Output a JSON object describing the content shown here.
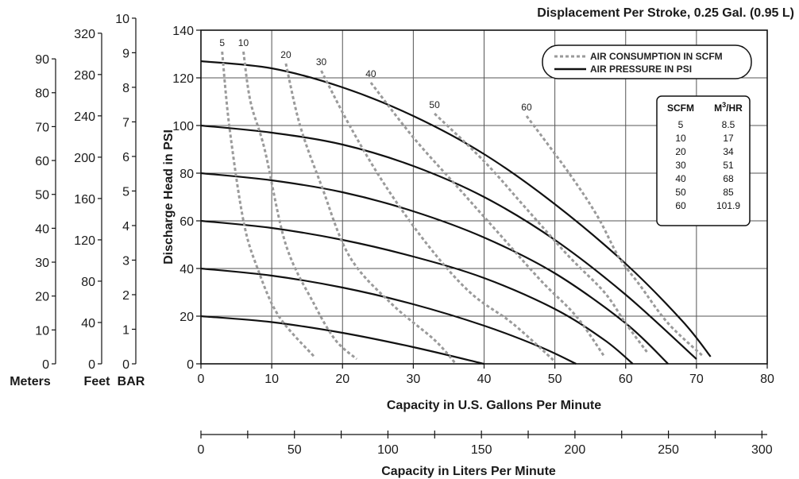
{
  "chart_data": {
    "type": "line",
    "title": "Displacement Per Stroke, 0.25 Gal. (0.95 L)",
    "xlabel": "Capacity in U.S. Gallons Per Minute",
    "ylabel": "Discharge Head in PSI",
    "xlim": [
      0,
      80
    ],
    "ylim": [
      0,
      140
    ],
    "x_ticks": [
      "0",
      "10",
      "20",
      "30",
      "40",
      "50",
      "60",
      "70",
      "80"
    ],
    "y_ticks": [
      "0",
      "20",
      "40",
      "60",
      "80",
      "100",
      "120",
      "140"
    ],
    "grid": true,
    "legend": {
      "position": "top-right",
      "items": [
        {
          "label": "AIR CONSUMPTION IN SCFM",
          "style": "dashed",
          "color": "#9a9a9a"
        },
        {
          "label": "AIR PRESSURE IN PSI",
          "style": "solid",
          "color": "#111111"
        }
      ]
    },
    "pressure_curves": [
      {
        "name": "20",
        "points": [
          [
            0,
            20
          ],
          [
            10,
            17.5
          ],
          [
            20,
            13
          ],
          [
            30,
            7
          ],
          [
            40,
            0
          ]
        ]
      },
      {
        "name": "40",
        "points": [
          [
            0,
            40
          ],
          [
            10,
            37
          ],
          [
            20,
            32
          ],
          [
            30,
            25
          ],
          [
            40,
            16
          ],
          [
            48,
            7
          ],
          [
            53,
            0
          ]
        ]
      },
      {
        "name": "60",
        "points": [
          [
            0,
            60
          ],
          [
            10,
            57
          ],
          [
            20,
            52
          ],
          [
            30,
            45
          ],
          [
            40,
            36
          ],
          [
            50,
            23
          ],
          [
            57,
            10
          ],
          [
            61,
            0
          ]
        ]
      },
      {
        "name": "80",
        "points": [
          [
            0,
            80
          ],
          [
            10,
            77
          ],
          [
            20,
            72
          ],
          [
            30,
            64
          ],
          [
            40,
            53
          ],
          [
            50,
            38
          ],
          [
            60,
            17
          ],
          [
            66,
            0
          ]
        ]
      },
      {
        "name": "100",
        "points": [
          [
            0,
            100
          ],
          [
            10,
            97
          ],
          [
            20,
            92
          ],
          [
            30,
            83
          ],
          [
            40,
            70
          ],
          [
            50,
            52
          ],
          [
            60,
            29
          ],
          [
            70,
            2
          ]
        ]
      },
      {
        "name": "120",
        "points": [
          [
            0,
            127
          ],
          [
            10,
            124
          ],
          [
            20,
            116
          ],
          [
            30,
            104
          ],
          [
            40,
            88
          ],
          [
            50,
            67
          ],
          [
            60,
            42
          ],
          [
            68,
            18
          ],
          [
            72,
            3
          ]
        ]
      }
    ],
    "scfm_curves": [
      {
        "name": "5",
        "points": [
          [
            3,
            131
          ],
          [
            4,
            100
          ],
          [
            6,
            60
          ],
          [
            8,
            40
          ],
          [
            11,
            20
          ],
          [
            16,
            3
          ]
        ]
      },
      {
        "name": "10",
        "points": [
          [
            6,
            131
          ],
          [
            7,
            110
          ],
          [
            9,
            90
          ],
          [
            12,
            50
          ],
          [
            16,
            25
          ],
          [
            19,
            10
          ],
          [
            22,
            2
          ]
        ]
      },
      {
        "name": "20",
        "points": [
          [
            12,
            126
          ],
          [
            14,
            100
          ],
          [
            17,
            75
          ],
          [
            21,
            45
          ],
          [
            27,
            25
          ],
          [
            33,
            10
          ],
          [
            36,
            0
          ]
        ]
      },
      {
        "name": "30",
        "points": [
          [
            17,
            123
          ],
          [
            21,
            100
          ],
          [
            26,
            75
          ],
          [
            32,
            50
          ],
          [
            38,
            30
          ],
          [
            44,
            17
          ],
          [
            50,
            1
          ]
        ]
      },
      {
        "name": "40",
        "points": [
          [
            24,
            118
          ],
          [
            30,
            95
          ],
          [
            36,
            75
          ],
          [
            42,
            55
          ],
          [
            48,
            35
          ],
          [
            53,
            20
          ],
          [
            57,
            3
          ]
        ]
      },
      {
        "name": "50",
        "points": [
          [
            33,
            105
          ],
          [
            40,
            85
          ],
          [
            46,
            65
          ],
          [
            52,
            45
          ],
          [
            57,
            30
          ],
          [
            60,
            17
          ],
          [
            63,
            5
          ]
        ]
      },
      {
        "name": "60",
        "points": [
          [
            46,
            104
          ],
          [
            52,
            80
          ],
          [
            56,
            62
          ],
          [
            59,
            45
          ],
          [
            62,
            33
          ],
          [
            66,
            17
          ],
          [
            71,
            3
          ]
        ]
      }
    ],
    "secondary_axes": {
      "meters": {
        "label": "Meters",
        "ticks": [
          "0",
          "10",
          "20",
          "30",
          "40",
          "50",
          "60",
          "70",
          "80",
          "90"
        ]
      },
      "feet": {
        "label": "Feet",
        "ticks": [
          "0",
          "40",
          "80",
          "120",
          "160",
          "200",
          "240",
          "280",
          "320"
        ]
      },
      "bar": {
        "label": "BAR",
        "ticks": [
          "0",
          "1",
          "2",
          "3",
          "4",
          "5",
          "6",
          "7",
          "8",
          "9",
          "10"
        ]
      },
      "liters": {
        "label": "Capacity in Liters Per Minute",
        "ticks": [
          "0",
          "50",
          "100",
          "150",
          "200",
          "250",
          "300"
        ]
      }
    },
    "conversion_table": {
      "headers": [
        "SCFM",
        "M3/HR"
      ],
      "rows": [
        [
          "5",
          "8.5"
        ],
        [
          "10",
          "17"
        ],
        [
          "20",
          "34"
        ],
        [
          "30",
          "51"
        ],
        [
          "40",
          "68"
        ],
        [
          "50",
          "85"
        ],
        [
          "60",
          "101.9"
        ]
      ]
    }
  }
}
